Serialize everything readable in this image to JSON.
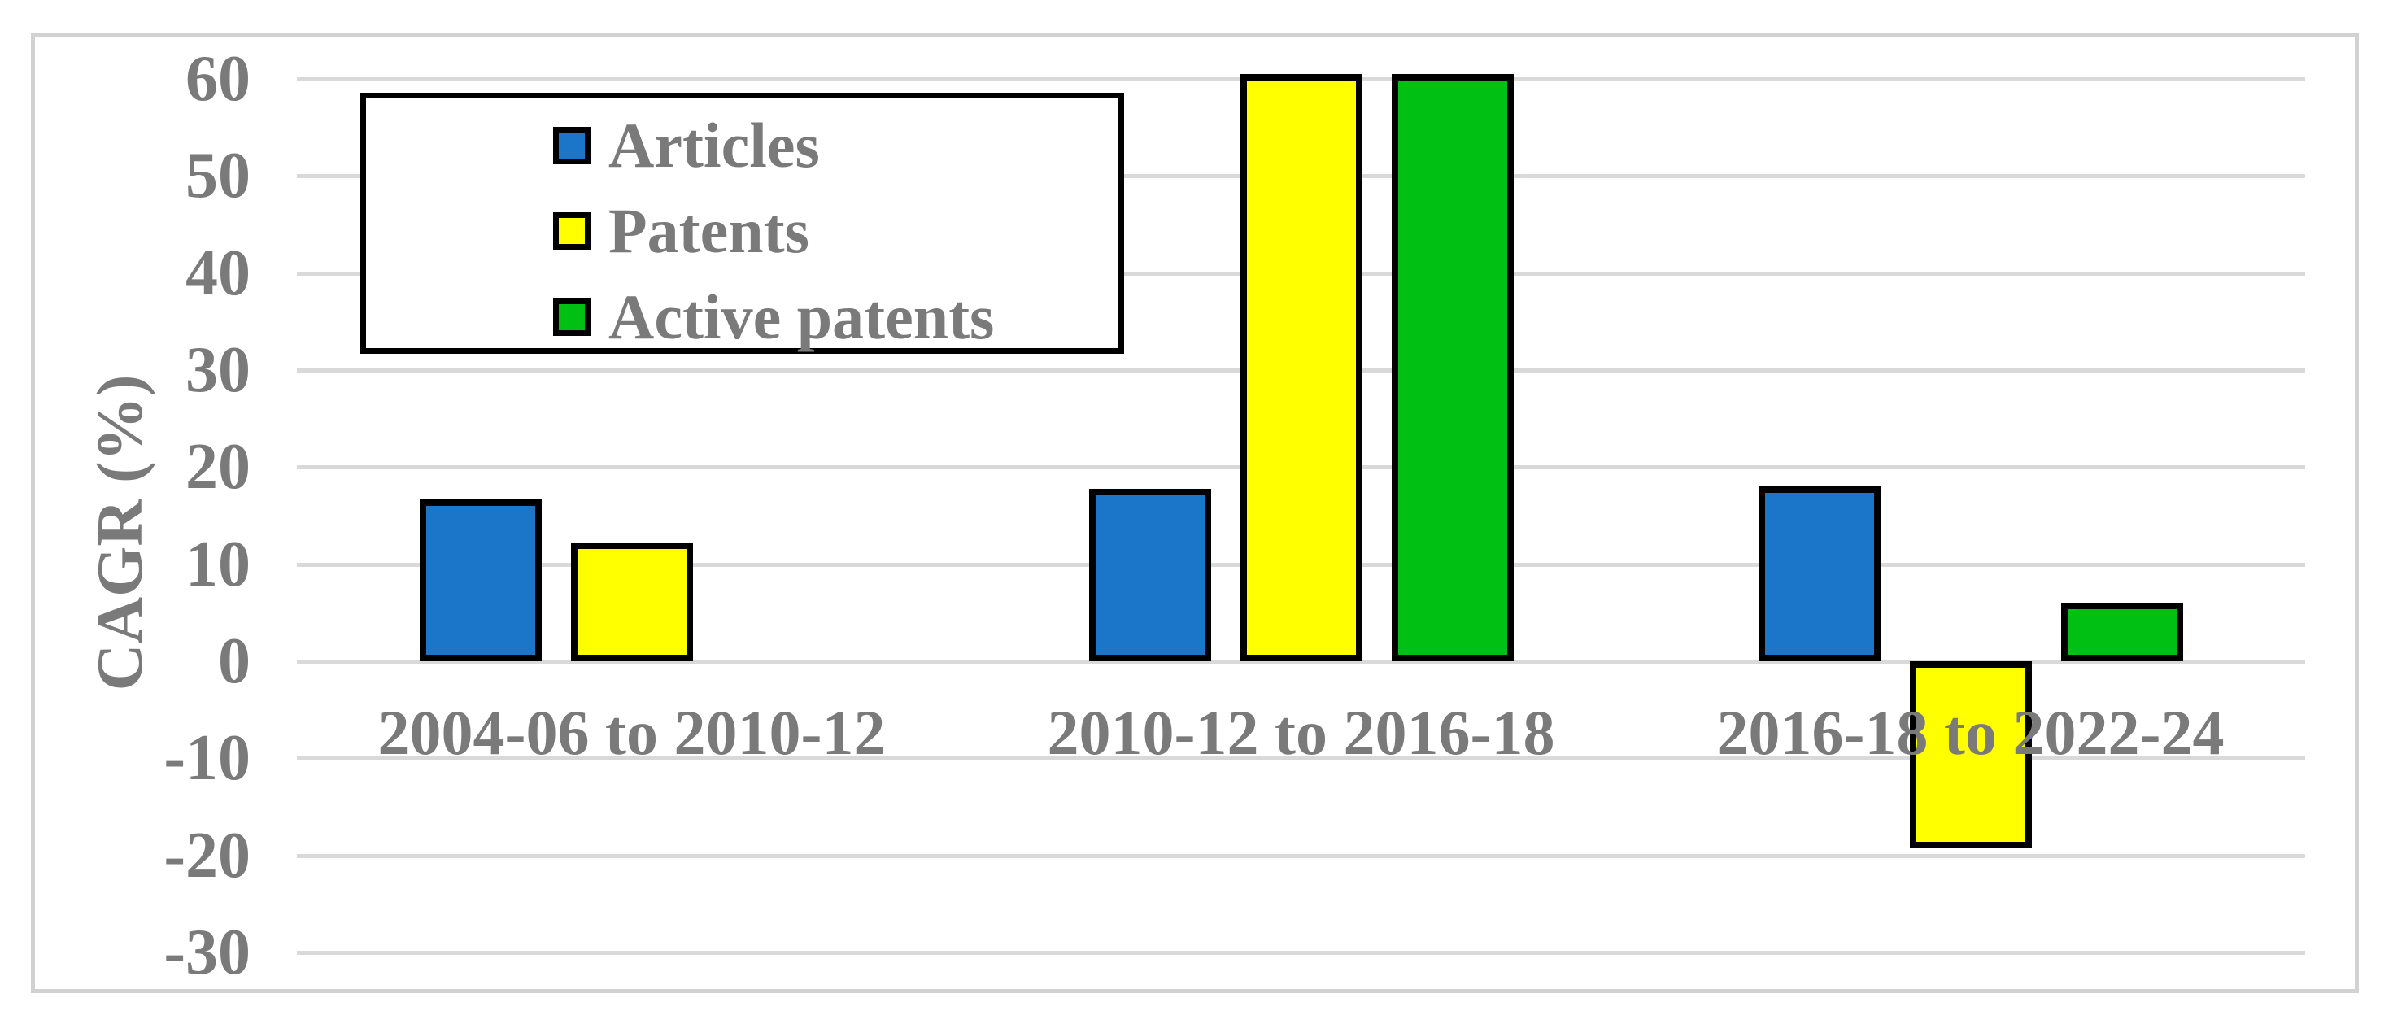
{
  "figure": {
    "kind": "grouped-bar-chart-figure",
    "background": "#ffffff",
    "frame_border_color": "#d2d2d2"
  },
  "colors": {
    "text_gray": "#7a7a7a",
    "gridline": "#d9d9d9",
    "bar_border": "#000000",
    "legend_border": "#000000",
    "articles_blue": "#1b75c8",
    "patents_yellow": "#ffff00",
    "active_patents_green": "#00c013"
  },
  "chart_data": {
    "type": "bar",
    "title": "",
    "xlabel": "",
    "ylabel": "CAGR (%)",
    "categories": [
      "2004-06 to 2010-12",
      "2010-12 to 2016-18",
      "2016-18 to 2022-24"
    ],
    "series": [
      {
        "name": "Articles",
        "color": "#1b75c8",
        "values": [
          16.7,
          17.8,
          18.0
        ]
      },
      {
        "name": "Patents",
        "color": "#ffff00",
        "values": [
          12.2,
          60.5,
          -19.3
        ]
      },
      {
        "name": "Active patents",
        "color": "#00c013",
        "values": [
          null,
          60.5,
          6.0
        ]
      }
    ],
    "ylim": [
      -30,
      60
    ],
    "ytick_step": 10,
    "yticks": [
      60,
      50,
      40,
      30,
      20,
      10,
      0,
      -10,
      -20,
      -30
    ],
    "grid": true,
    "gridlines_horizontal": true,
    "legend_position": "top-left-inside",
    "legend_entries": [
      "Articles",
      "Patents",
      "Active patents"
    ],
    "category_label_position": "below-zero-axis"
  }
}
